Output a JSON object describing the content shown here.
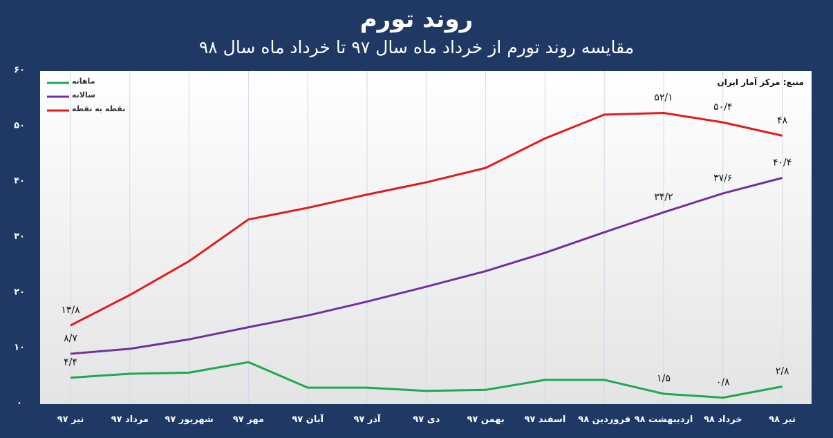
{
  "header": {
    "title": "روند تورم",
    "subtitle": "مقایسه روند تورم از خرداد ماه سال ۹۷ تا خرداد ماه سال ۹۸"
  },
  "chart_data": {
    "type": "line",
    "title": "روند تورم",
    "subtitle": "مقایسه روند تورم از خرداد ماه سال ۹۷ تا خرداد ماه سال ۹۸",
    "source": "منبع: مرکز آمار ایران",
    "categories": [
      "تیر ۹۷",
      "مرداد ۹۷",
      "شهریور ۹۷",
      "مهر ۹۷",
      "آبان ۹۷",
      "آذر ۹۷",
      "دی ۹۷",
      "بهمن ۹۷",
      "اسفند ۹۷",
      "فروردین ۹۸",
      "اردیبهشت ۹۸",
      "خرداد ۹۸",
      "تیر ۹۸"
    ],
    "y_ticks": [
      "۰",
      "۱۰",
      "۲۰",
      "۳۰",
      "۴۰",
      "۵۰",
      "۶۰"
    ],
    "ylim": [
      0,
      60
    ],
    "grid": "vertical",
    "legend_position": "top-left",
    "series": [
      {
        "name": "ماهانه",
        "color": "#1fa84f",
        "values": [
          4.4,
          5.1,
          5.3,
          7.2,
          2.6,
          2.6,
          2.0,
          2.2,
          4.0,
          4.0,
          1.5,
          0.8,
          2.8
        ],
        "labels": [
          "۴/۴",
          "",
          "",
          "",
          "",
          "",
          "",
          "",
          "",
          "",
          "۱/۵",
          "۰/۸",
          "۲/۸"
        ]
      },
      {
        "name": "سالانه",
        "color": "#7030a0",
        "values": [
          8.7,
          9.6,
          11.3,
          13.5,
          15.6,
          18.1,
          20.8,
          23.6,
          26.9,
          30.6,
          34.2,
          37.6,
          40.4
        ],
        "labels": [
          "۸/۷",
          "",
          "",
          "",
          "",
          "",
          "",
          "",
          "",
          "",
          "۳۴/۲",
          "۳۷/۶",
          "۴۰/۴"
        ]
      },
      {
        "name": "نقطه به نقطه",
        "color": "#e31a1c",
        "values": [
          13.8,
          19.3,
          25.4,
          32.9,
          35.0,
          37.4,
          39.6,
          42.2,
          47.5,
          51.8,
          52.1,
          50.4,
          48.0
        ],
        "labels": [
          "۱۳/۸",
          "",
          "",
          "",
          "",
          "",
          "",
          "",
          "",
          "",
          "۵۲/۱",
          "۵۰/۴",
          "۴۸"
        ]
      }
    ]
  }
}
